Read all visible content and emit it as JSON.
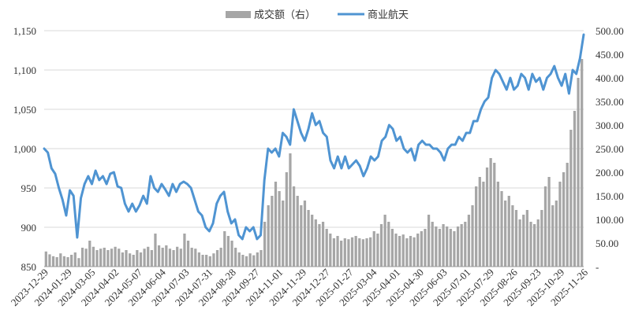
{
  "chart_data": {
    "type": "line+bar",
    "legend": {
      "placement": "top-center",
      "entries": [
        "成交额（右）",
        "商业航天"
      ]
    },
    "colors": {
      "line": "#4f94d2",
      "bar": "#a6a6a6",
      "grid": "#d9d9d9"
    },
    "left_axis": {
      "ylim": [
        850,
        1150
      ],
      "ticks": [
        "850",
        "900",
        "950",
        "1,000",
        "1,050",
        "1,100",
        "1,150"
      ]
    },
    "right_axis": {
      "ylim": [
        0,
        500
      ],
      "ticks": [
        "-",
        "50.00",
        "100.00",
        "150.00",
        "200.00",
        "250.00",
        "300.00",
        "350.00",
        "400.00",
        "450.00",
        "500.00"
      ]
    },
    "x_ticks": [
      "2023-12-29",
      "2024-01-29",
      "2024-03-05",
      "2024-04-02",
      "2024-05-07",
      "2024-06-04",
      "2024-07-03",
      "2024-07-31",
      "2024-08-28",
      "2024-09-27",
      "2024-11-01",
      "2024-11-29",
      "2024-12-27",
      "2025-01-27",
      "2025-03-04",
      "2025-04-01",
      "2025-04-30",
      "2025-06-03",
      "2025-07-01",
      "2025-07-29",
      "2025-08-26",
      "2025-09-23",
      "2025-10-29",
      "2025-11-26"
    ],
    "grid": true,
    "line_series": {
      "name": "商业航天",
      "points": [
        [
          0,
          1000
        ],
        [
          1,
          995
        ],
        [
          2,
          975
        ],
        [
          3,
          968
        ],
        [
          4,
          950
        ],
        [
          5,
          935
        ],
        [
          6,
          915
        ],
        [
          7,
          947
        ],
        [
          8,
          940
        ],
        [
          9,
          887
        ],
        [
          10,
          937
        ],
        [
          11,
          955
        ],
        [
          12,
          965
        ],
        [
          13,
          955
        ],
        [
          14,
          972
        ],
        [
          15,
          960
        ],
        [
          16,
          965
        ],
        [
          17,
          955
        ],
        [
          18,
          968
        ],
        [
          19,
          970
        ],
        [
          20,
          952
        ],
        [
          21,
          950
        ],
        [
          22,
          930
        ],
        [
          23,
          920
        ],
        [
          24,
          930
        ],
        [
          25,
          920
        ],
        [
          26,
          928
        ],
        [
          27,
          940
        ],
        [
          28,
          930
        ],
        [
          29,
          965
        ],
        [
          30,
          950
        ],
        [
          31,
          945
        ],
        [
          32,
          955
        ],
        [
          33,
          948
        ],
        [
          34,
          940
        ],
        [
          35,
          955
        ],
        [
          36,
          945
        ],
        [
          37,
          955
        ],
        [
          38,
          958
        ],
        [
          39,
          955
        ],
        [
          40,
          950
        ],
        [
          41,
          935
        ],
        [
          42,
          920
        ],
        [
          43,
          915
        ],
        [
          44,
          900
        ],
        [
          45,
          895
        ],
        [
          46,
          905
        ],
        [
          47,
          930
        ],
        [
          48,
          940
        ],
        [
          49,
          945
        ],
        [
          50,
          920
        ],
        [
          51,
          905
        ],
        [
          52,
          910
        ],
        [
          53,
          890
        ],
        [
          54,
          885
        ],
        [
          55,
          900
        ],
        [
          56,
          895
        ],
        [
          57,
          900
        ],
        [
          58,
          885
        ],
        [
          59,
          890
        ],
        [
          60,
          960
        ],
        [
          61,
          1000
        ],
        [
          62,
          995
        ],
        [
          63,
          1000
        ],
        [
          64,
          990
        ],
        [
          65,
          1020
        ],
        [
          66,
          1015
        ],
        [
          67,
          1005
        ],
        [
          68,
          1050
        ],
        [
          69,
          1035
        ],
        [
          70,
          1020
        ],
        [
          71,
          1010
        ],
        [
          72,
          1025
        ],
        [
          73,
          1045
        ],
        [
          74,
          1030
        ],
        [
          75,
          1035
        ],
        [
          76,
          1020
        ],
        [
          77,
          1015
        ],
        [
          78,
          985
        ],
        [
          79,
          975
        ],
        [
          80,
          990
        ],
        [
          81,
          975
        ],
        [
          82,
          990
        ],
        [
          83,
          975
        ],
        [
          84,
          980
        ],
        [
          85,
          985
        ],
        [
          86,
          978
        ],
        [
          87,
          965
        ],
        [
          88,
          975
        ],
        [
          89,
          990
        ],
        [
          90,
          985
        ],
        [
          91,
          990
        ],
        [
          92,
          1010
        ],
        [
          93,
          1015
        ],
        [
          94,
          1030
        ],
        [
          95,
          1025
        ],
        [
          96,
          1010
        ],
        [
          97,
          1015
        ],
        [
          98,
          1000
        ],
        [
          99,
          995
        ],
        [
          100,
          1000
        ],
        [
          101,
          985
        ],
        [
          102,
          1005
        ],
        [
          103,
          1010
        ],
        [
          104,
          1005
        ],
        [
          105,
          1005
        ],
        [
          106,
          1000
        ],
        [
          107,
          1000
        ],
        [
          108,
          995
        ],
        [
          109,
          985
        ],
        [
          110,
          1000
        ],
        [
          111,
          1005
        ],
        [
          112,
          1005
        ],
        [
          113,
          1015
        ],
        [
          114,
          1010
        ],
        [
          115,
          1020
        ],
        [
          116,
          1020
        ],
        [
          117,
          1035
        ],
        [
          118,
          1035
        ],
        [
          119,
          1050
        ],
        [
          120,
          1060
        ],
        [
          121,
          1065
        ],
        [
          122,
          1090
        ],
        [
          123,
          1100
        ],
        [
          124,
          1095
        ],
        [
          125,
          1085
        ],
        [
          126,
          1075
        ],
        [
          127,
          1090
        ],
        [
          128,
          1075
        ],
        [
          129,
          1080
        ],
        [
          130,
          1095
        ],
        [
          131,
          1090
        ],
        [
          132,
          1075
        ],
        [
          133,
          1095
        ],
        [
          134,
          1085
        ],
        [
          135,
          1090
        ],
        [
          136,
          1075
        ],
        [
          137,
          1090
        ],
        [
          138,
          1095
        ],
        [
          139,
          1105
        ],
        [
          140,
          1090
        ],
        [
          141,
          1080
        ],
        [
          142,
          1095
        ],
        [
          143,
          1070
        ],
        [
          144,
          1100
        ],
        [
          145,
          1095
        ],
        [
          146,
          1115
        ],
        [
          147,
          1145
        ]
      ]
    },
    "bar_series": {
      "name": "成交额（右）",
      "values": [
        32,
        26,
        22,
        20,
        28,
        22,
        20,
        25,
        30,
        18,
        40,
        38,
        55,
        42,
        35,
        38,
        40,
        35,
        38,
        42,
        38,
        30,
        35,
        28,
        25,
        35,
        30,
        38,
        42,
        35,
        70,
        45,
        40,
        45,
        38,
        35,
        42,
        38,
        70,
        55,
        40,
        38,
        30,
        25,
        25,
        22,
        28,
        35,
        40,
        75,
        65,
        55,
        40,
        30,
        25,
        22,
        28,
        24,
        30,
        35,
        95,
        130,
        150,
        180,
        160,
        140,
        200,
        240,
        170,
        150,
        130,
        140,
        120,
        110,
        100,
        90,
        95,
        80,
        70,
        60,
        65,
        55,
        60,
        58,
        62,
        65,
        60,
        58,
        60,
        62,
        75,
        70,
        90,
        110,
        95,
        80,
        70,
        65,
        68,
        60,
        65,
        62,
        70,
        75,
        80,
        110,
        95,
        85,
        80,
        90,
        85,
        80,
        75,
        85,
        90,
        95,
        110,
        130,
        170,
        190,
        180,
        210,
        230,
        220,
        180,
        160,
        140,
        150,
        130,
        120,
        100,
        110,
        120,
        95,
        90,
        100,
        120,
        170,
        190,
        130,
        140,
        180,
        200,
        220,
        290,
        330,
        400,
        440
      ]
    }
  }
}
